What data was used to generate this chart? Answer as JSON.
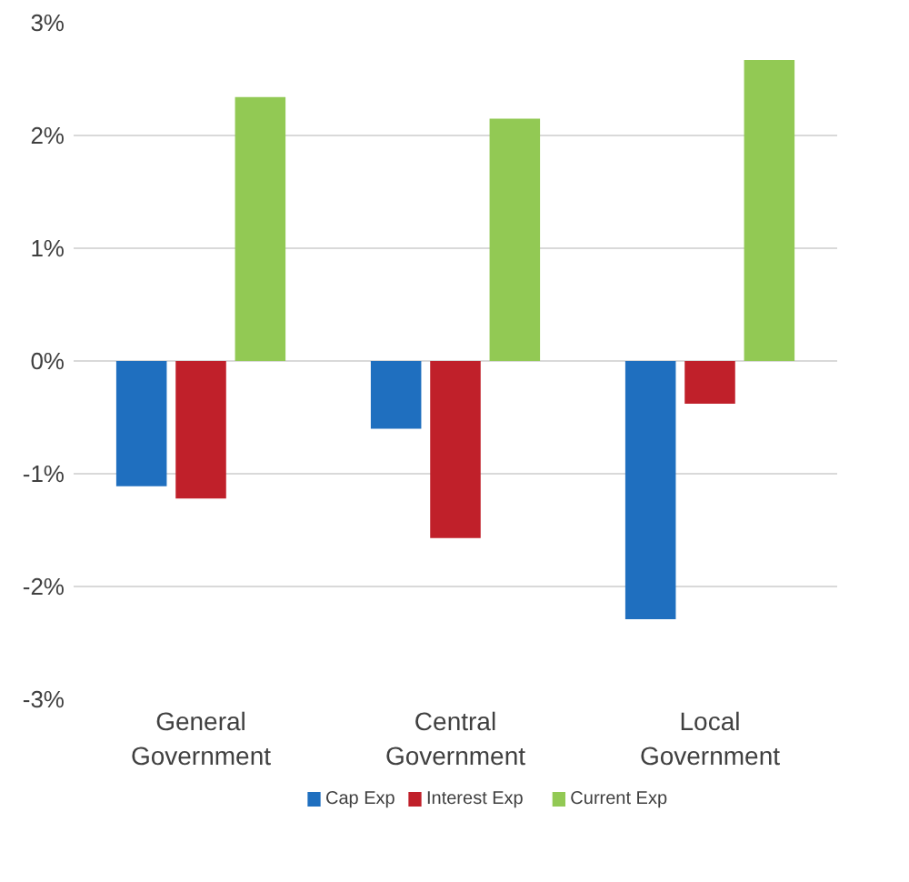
{
  "chart_data": {
    "type": "bar",
    "categories": [
      "General\nGovernment",
      "Central\nGovernment",
      "Local\nGovernment"
    ],
    "series": [
      {
        "name": "Cap Exp",
        "color": "#1f6fbf",
        "values": [
          -1.11,
          -0.6,
          -2.29
        ]
      },
      {
        "name": "Interest Exp",
        "color": "#c0202a",
        "values": [
          -1.22,
          -1.57,
          -0.38
        ]
      },
      {
        "name": "Current Exp",
        "color": "#92c954",
        "values": [
          2.34,
          2.15,
          2.67
        ]
      }
    ],
    "ylim": [
      -3,
      3
    ],
    "yticks": [
      {
        "value": -3,
        "label": "-3%"
      },
      {
        "value": -2,
        "label": "-2%"
      },
      {
        "value": -1,
        "label": "-1%"
      },
      {
        "value": 0,
        "label": "0%"
      },
      {
        "value": 1,
        "label": "1%"
      },
      {
        "value": 2,
        "label": "2%"
      },
      {
        "value": 3,
        "label": "3%"
      }
    ],
    "grid": "y",
    "legend": "bottom"
  }
}
